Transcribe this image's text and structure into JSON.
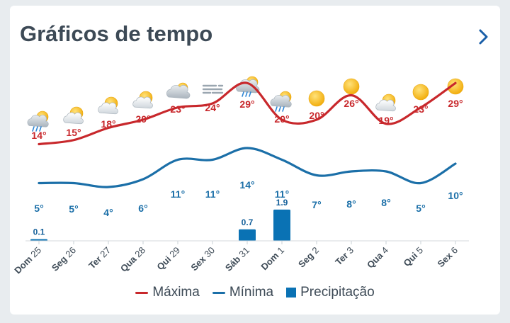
{
  "header": {
    "title": "Gráficos de tempo"
  },
  "colors": {
    "max": "#c8282c",
    "min": "#1b6fa8",
    "precip": "#0a72b4",
    "maxLabel": "#c8282c",
    "minLabel": "#1b6fa8"
  },
  "days": [
    {
      "label": "Dom 25",
      "icon": "partly-cloudy-rain-icon"
    },
    {
      "label": "Seg 26",
      "icon": "partly-cloudy-icon"
    },
    {
      "label": "Ter 27",
      "icon": "partly-cloudy-icon"
    },
    {
      "label": "Qua 28",
      "icon": "partly-cloudy-icon"
    },
    {
      "label": "Qui 29",
      "icon": "cloudy-sun-icon"
    },
    {
      "label": "Sex 30",
      "icon": "fog-icon"
    },
    {
      "label": "Sáb 31",
      "icon": "cloudy-sun-rain-icon"
    },
    {
      "label": "Dom 1",
      "icon": "partly-cloudy-rain-icon"
    },
    {
      "label": "Seg 2",
      "icon": "sun-icon"
    },
    {
      "label": "Ter 3",
      "icon": "sun-icon"
    },
    {
      "label": "Qua 4",
      "icon": "partly-cloudy-icon"
    },
    {
      "label": "Qui 5",
      "icon": "sun-icon"
    },
    {
      "label": "Sex 6",
      "icon": "sun-icon"
    }
  ],
  "chart_data": {
    "type": "line",
    "categories": [
      "Dom 25",
      "Seg 26",
      "Ter 27",
      "Qua 28",
      "Qui 29",
      "Sex 30",
      "Sáb 31",
      "Dom 1",
      "Seg 2",
      "Ter 3",
      "Qua 4",
      "Qui 5",
      "Sex 6"
    ],
    "series": [
      {
        "name": "Máxima",
        "values": [
          14,
          15,
          18,
          20,
          23,
          24,
          29,
          20,
          20,
          26,
          19,
          23,
          29
        ],
        "labels": [
          "14°",
          "15°",
          "18°",
          "20°",
          "23°",
          "24°",
          "29°",
          "20°",
          "20°",
          "26°",
          "19°",
          "23°",
          "29°"
        ]
      },
      {
        "name": "Mínima",
        "values": [
          5,
          5,
          4,
          6,
          11,
          11,
          14,
          11,
          7,
          8,
          8,
          5,
          10
        ],
        "labels": [
          "5°",
          "5°",
          "4°",
          "6°",
          "11°",
          "11°",
          "14°",
          "11°",
          "7°",
          "8°",
          "8°",
          "5°",
          "10°"
        ]
      },
      {
        "name": "Precipitação",
        "type": "bar",
        "values": [
          0.1,
          0,
          0,
          0,
          0,
          0,
          0.7,
          1.9,
          0,
          0,
          0,
          0,
          0
        ],
        "labels": [
          "0.1",
          "",
          "",
          "",
          "",
          "",
          "0.7",
          "1.9",
          "",
          "",
          "",
          "",
          ""
        ]
      }
    ]
  },
  "legend": {
    "max": "Máxima",
    "min": "Mínima",
    "precip": "Precipitação"
  }
}
